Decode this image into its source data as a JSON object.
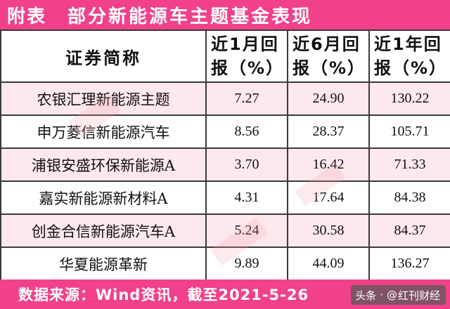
{
  "title": {
    "prefix": "附表",
    "main": "部分新能源车主题基金表现"
  },
  "table": {
    "headers": {
      "name": "证券简称",
      "m1": [
        "近1月回",
        "报（%）"
      ],
      "m6": [
        "近6月回",
        "报（%）"
      ],
      "y1": [
        "近1年回",
        "报（%）"
      ]
    },
    "rows": [
      {
        "name": "农银汇理新能源主题",
        "m1": "7.27",
        "m6": "24.90",
        "y1": "130.22"
      },
      {
        "name": "申万菱信新能源汽车",
        "m1": "8.56",
        "m6": "28.37",
        "y1": "105.71"
      },
      {
        "name": "浦银安盛环保新能源A",
        "m1": "3.70",
        "m6": "16.42",
        "y1": "71.33"
      },
      {
        "name": "嘉实新能源新材料A",
        "m1": "4.31",
        "m6": "17.64",
        "y1": "84.38"
      },
      {
        "name": "创金合信新能源汽车A",
        "m1": "5.24",
        "m6": "30.58",
        "y1": "84.37"
      },
      {
        "name": "华夏能源革新",
        "m1": "9.89",
        "m6": "44.09",
        "y1": "136.27"
      }
    ]
  },
  "footer": {
    "text": "数据来源：Wind资讯，截至2021-5-26"
  },
  "badge": {
    "platform": "头条",
    "at": "@",
    "author": "红刊财经"
  },
  "colors": {
    "accent": "#f0418a",
    "row_tint": "#fde8ee",
    "border": "#3a3a3a"
  }
}
